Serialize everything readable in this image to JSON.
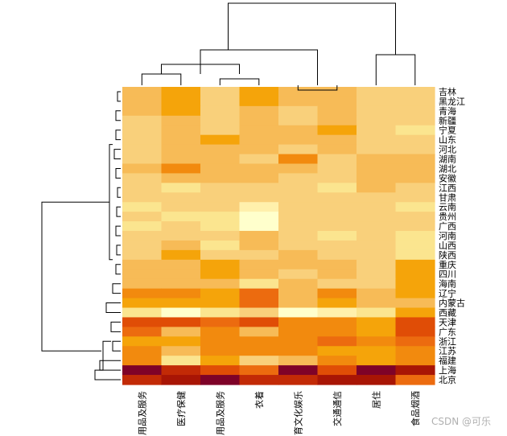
{
  "chart_data": {
    "type": "heatmap",
    "title": "",
    "xlabel": "",
    "ylabel": "",
    "columns": [
      "用品及服务",
      "医疗保健",
      "用品及服务",
      "衣着",
      "育文化娱乐",
      "交通通信",
      "居住",
      "食品烟酒"
    ],
    "rows": [
      "吉林",
      "黑龙江",
      "青海",
      "新疆",
      "宁夏",
      "山东",
      "河北",
      "湖南",
      "湖北",
      "安徽",
      "江西",
      "甘肃",
      "云南",
      "贵州",
      "广西",
      "河南",
      "山西",
      "陕西",
      "重庆",
      "四川",
      "海南",
      "辽宁",
      "内蒙古",
      "西藏",
      "天津",
      "广东",
      "浙江",
      "江苏",
      "福建",
      "上海",
      "北京"
    ],
    "palette": [
      "#ffffcc",
      "#fff0ac",
      "#fbe58f",
      "#f9d07b",
      "#f7bb57",
      "#f5a40a",
      "#f28a0e",
      "#ec6b0f",
      "#e04d06",
      "#c22a06",
      "#a81505",
      "#7e0228"
    ],
    "value_range": [
      0,
      11
    ],
    "values": [
      [
        4,
        5,
        3,
        5,
        4,
        4,
        3,
        3
      ],
      [
        4,
        5,
        3,
        5,
        4,
        4,
        3,
        3
      ],
      [
        4,
        5,
        3,
        4,
        3,
        4,
        3,
        3
      ],
      [
        3,
        4,
        3,
        4,
        3,
        4,
        3,
        3
      ],
      [
        3,
        4,
        3,
        4,
        4,
        5,
        3,
        2
      ],
      [
        3,
        4,
        5,
        4,
        4,
        4,
        3,
        3
      ],
      [
        3,
        4,
        4,
        4,
        3,
        4,
        3,
        3
      ],
      [
        3,
        4,
        4,
        3,
        6,
        3,
        4,
        4
      ],
      [
        4,
        6,
        4,
        4,
        4,
        3,
        4,
        4
      ],
      [
        3,
        4,
        4,
        4,
        3,
        3,
        4,
        4
      ],
      [
        3,
        2,
        3,
        3,
        3,
        2,
        4,
        3
      ],
      [
        3,
        3,
        3,
        3,
        3,
        3,
        3,
        3
      ],
      [
        2,
        3,
        3,
        1,
        3,
        3,
        3,
        2
      ],
      [
        3,
        2,
        2,
        0,
        3,
        3,
        3,
        3
      ],
      [
        2,
        3,
        2,
        0,
        3,
        3,
        3,
        3
      ],
      [
        3,
        3,
        3,
        4,
        3,
        2,
        3,
        2
      ],
      [
        3,
        4,
        2,
        4,
        3,
        3,
        3,
        2
      ],
      [
        3,
        5,
        3,
        3,
        4,
        3,
        3,
        2
      ],
      [
        4,
        4,
        5,
        4,
        4,
        4,
        3,
        5
      ],
      [
        4,
        4,
        5,
        4,
        3,
        4,
        3,
        5
      ],
      [
        4,
        4,
        4,
        2,
        4,
        3,
        3,
        5
      ],
      [
        6,
        6,
        5,
        7,
        4,
        6,
        4,
        5
      ],
      [
        5,
        5,
        5,
        7,
        4,
        5,
        4,
        4
      ],
      [
        2,
        0,
        2,
        3,
        0,
        1,
        2,
        5
      ],
      [
        8,
        8,
        7,
        8,
        6,
        6,
        5,
        8
      ],
      [
        7,
        4,
        6,
        4,
        6,
        6,
        5,
        8
      ],
      [
        5,
        5,
        6,
        6,
        6,
        7,
        6,
        7
      ],
      [
        6,
        4,
        6,
        6,
        6,
        5,
        5,
        6
      ],
      [
        6,
        2,
        5,
        3,
        4,
        6,
        5,
        6
      ],
      [
        11,
        9,
        8,
        7,
        11,
        8,
        11,
        10
      ],
      [
        9,
        10,
        11,
        9,
        9,
        10,
        10,
        7
      ]
    ]
  },
  "watermark": "CSDN @可乐"
}
